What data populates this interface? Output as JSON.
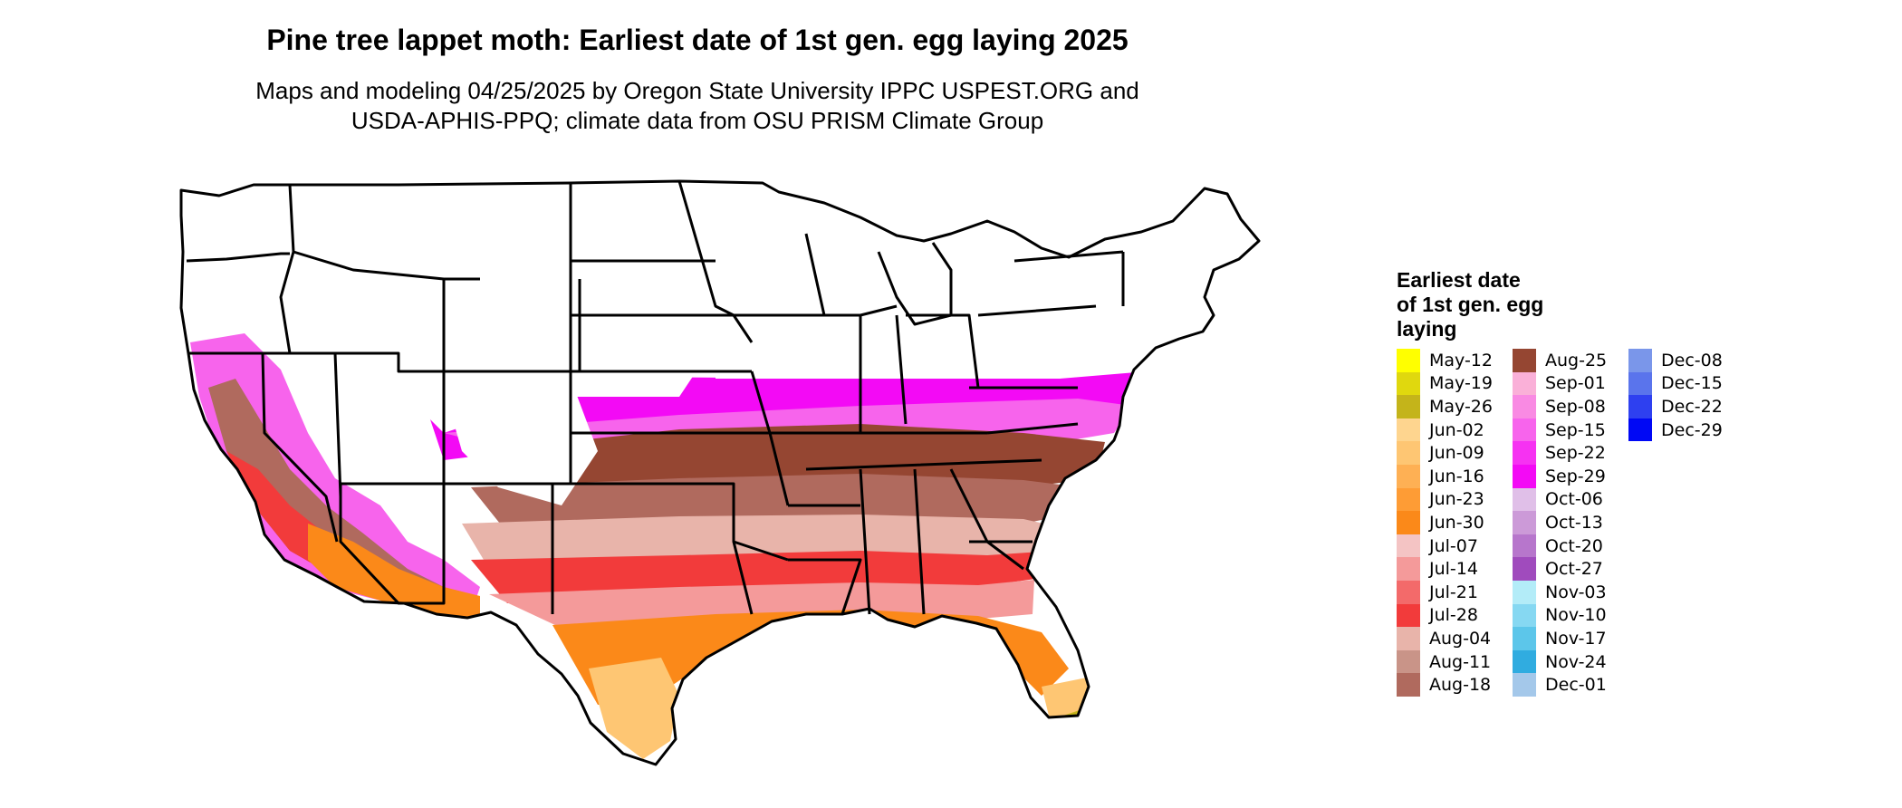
{
  "title": "Pine tree lappet moth: Earliest date of 1st gen. egg laying 2025",
  "subtitle": [
    "Maps and modeling 04/25/2025 by Oregon State University IPPC USPEST.ORG and",
    "USDA-APHIS-PPQ; climate data from OSU PRISM Climate Group"
  ],
  "legend": {
    "title": [
      "Earliest date",
      "of 1st gen. egg",
      "laying"
    ],
    "columns": [
      [
        {
          "label": "May-12",
          "color": "#ffff00"
        },
        {
          "label": "May-19",
          "color": "#e0d80e"
        },
        {
          "label": "May-26",
          "color": "#c4b41a"
        },
        {
          "label": "Jun-02",
          "color": "#fed58f"
        },
        {
          "label": "Jun-09",
          "color": "#fec673"
        },
        {
          "label": "Jun-16",
          "color": "#feb054"
        },
        {
          "label": "Jun-23",
          "color": "#fe9c35"
        },
        {
          "label": "Jun-30",
          "color": "#fb8919"
        },
        {
          "label": "Jul-07",
          "color": "#f4c4c4"
        },
        {
          "label": "Jul-14",
          "color": "#f49a9a"
        },
        {
          "label": "Jul-21",
          "color": "#f36a6a"
        },
        {
          "label": "Jul-28",
          "color": "#f23b3b"
        },
        {
          "label": "Aug-04",
          "color": "#e8b4aa"
        },
        {
          "label": "Aug-11",
          "color": "#c99488"
        },
        {
          "label": "Aug-18",
          "color": "#b06a5e"
        }
      ],
      [
        {
          "label": "Aug-25",
          "color": "#954632"
        },
        {
          "label": "Sep-01",
          "color": "#fab0d8"
        },
        {
          "label": "Sep-08",
          "color": "#f98ae3"
        },
        {
          "label": "Sep-15",
          "color": "#f764ec"
        },
        {
          "label": "Sep-22",
          "color": "#f632f2"
        },
        {
          "label": "Sep-29",
          "color": "#f30af5"
        },
        {
          "label": "Oct-06",
          "color": "#e0bfe8"
        },
        {
          "label": "Oct-13",
          "color": "#cc9ad8"
        },
        {
          "label": "Oct-20",
          "color": "#b776cc"
        },
        {
          "label": "Oct-27",
          "color": "#a04bbd"
        },
        {
          "label": "Nov-03",
          "color": "#b3ecf8"
        },
        {
          "label": "Nov-10",
          "color": "#86d8f2"
        },
        {
          "label": "Nov-17",
          "color": "#5cc6ea"
        },
        {
          "label": "Nov-24",
          "color": "#30ace0"
        },
        {
          "label": "Dec-01",
          "color": "#a4c8ea"
        }
      ],
      [
        {
          "label": "Dec-08",
          "color": "#7a96ea"
        },
        {
          "label": "Dec-15",
          "color": "#5a74ec"
        },
        {
          "label": "Dec-22",
          "color": "#2e40f0"
        },
        {
          "label": "Dec-29",
          "color": "#0008f5"
        }
      ]
    ]
  },
  "map": {
    "band_colors": [
      "#fec673",
      "#fb8919",
      "#f49a9a",
      "#f23b3b",
      "#e8b4aa",
      "#b06a5e",
      "#954632",
      "#f764ec",
      "#f30af5"
    ]
  }
}
